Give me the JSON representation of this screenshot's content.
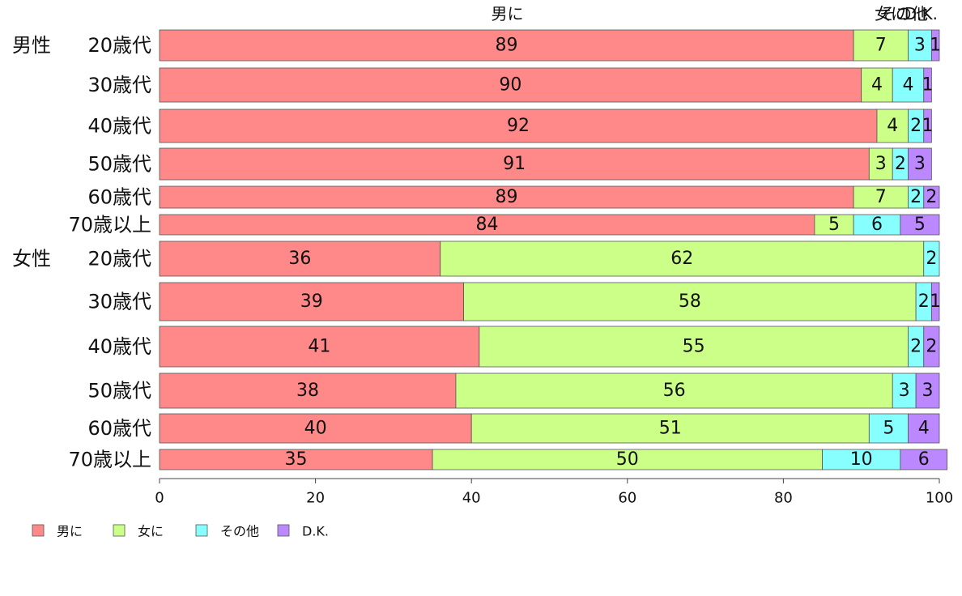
{
  "chart_data": {
    "type": "bar",
    "orientation": "horizontal",
    "stacked": true,
    "categories": [
      "男性 20歳代",
      "30歳代",
      "40歳代",
      "50歳代",
      "60歳代",
      "70歳以上",
      "女性 20歳代",
      "30歳代",
      "40歳代",
      "50歳代",
      "60歳代",
      "70歳以上"
    ],
    "series": [
      {
        "name": "男に",
        "color": "#ff8888",
        "values": [
          89,
          90,
          92,
          91,
          89,
          84,
          36,
          39,
          41,
          38,
          40,
          35
        ]
      },
      {
        "name": "女に",
        "color": "#ccff88",
        "values": [
          7,
          4,
          4,
          3,
          7,
          5,
          62,
          58,
          55,
          56,
          51,
          50
        ]
      },
      {
        "name": "その他",
        "color": "#88ffff",
        "values": [
          3,
          4,
          2,
          2,
          2,
          6,
          2,
          2,
          2,
          3,
          5,
          10
        ]
      },
      {
        "name": "D.K.",
        "color": "#bb88ff",
        "values": [
          1,
          1,
          1,
          3,
          2,
          5,
          0,
          1,
          2,
          3,
          4,
          6
        ]
      }
    ],
    "xlim": [
      0,
      100
    ],
    "xticks": [
      "0",
      "20",
      "40",
      "60",
      "80",
      "100"
    ],
    "top_labels": [
      "男に",
      "女に",
      "その他",
      "D.K."
    ],
    "legend_position": "bottom-left",
    "grid": false
  }
}
